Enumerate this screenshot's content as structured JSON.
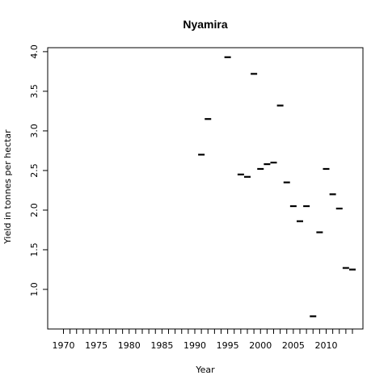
{
  "chart_data": {
    "type": "scatter",
    "title": "Nyamira",
    "xlabel": "Year",
    "ylabel": "Yield in tonnes per hectar",
    "xlim": [
      1967.6,
      2015.6
    ],
    "ylim": [
      0.5,
      4.05
    ],
    "x_ticks": [
      1970,
      1971,
      1972,
      1973,
      1974,
      1975,
      1976,
      1977,
      1978,
      1979,
      1980,
      1981,
      1982,
      1983,
      1984,
      1985,
      1986,
      1987,
      1988,
      1989,
      1990,
      1991,
      1992,
      1993,
      1994,
      1995,
      1996,
      1997,
      1998,
      1999,
      2000,
      2001,
      2002,
      2003,
      2004,
      2005,
      2006,
      2007,
      2008,
      2009,
      2010,
      2011,
      2012,
      2013,
      2014
    ],
    "x_tick_labels": [
      "1970",
      "1975",
      "1980",
      "1985",
      "1990",
      "1995",
      "2000",
      "2005",
      "2010"
    ],
    "y_ticks": [
      1.0,
      1.5,
      2.0,
      2.5,
      3.0,
      3.5,
      4.0
    ],
    "y_tick_labels": [
      "1.0",
      "1.5",
      "2.0",
      "2.5",
      "3.0",
      "3.5",
      "4.0"
    ],
    "marker": "dash",
    "points": [
      {
        "x": 1991,
        "y": 2.7
      },
      {
        "x": 1992,
        "y": 3.15
      },
      {
        "x": 1995,
        "y": 3.93
      },
      {
        "x": 1997,
        "y": 2.45
      },
      {
        "x": 1998,
        "y": 2.42
      },
      {
        "x": 1999,
        "y": 3.72
      },
      {
        "x": 2000,
        "y": 2.52
      },
      {
        "x": 2001,
        "y": 2.58
      },
      {
        "x": 2002,
        "y": 2.6
      },
      {
        "x": 2003,
        "y": 3.32
      },
      {
        "x": 2004,
        "y": 2.35
      },
      {
        "x": 2005,
        "y": 2.05
      },
      {
        "x": 2006,
        "y": 1.86
      },
      {
        "x": 2007,
        "y": 2.05
      },
      {
        "x": 2008,
        "y": 0.66
      },
      {
        "x": 2009,
        "y": 1.72
      },
      {
        "x": 2010,
        "y": 2.52
      },
      {
        "x": 2011,
        "y": 2.2
      },
      {
        "x": 2012,
        "y": 2.02
      },
      {
        "x": 2013,
        "y": 1.27
      },
      {
        "x": 2014,
        "y": 1.25
      }
    ]
  }
}
